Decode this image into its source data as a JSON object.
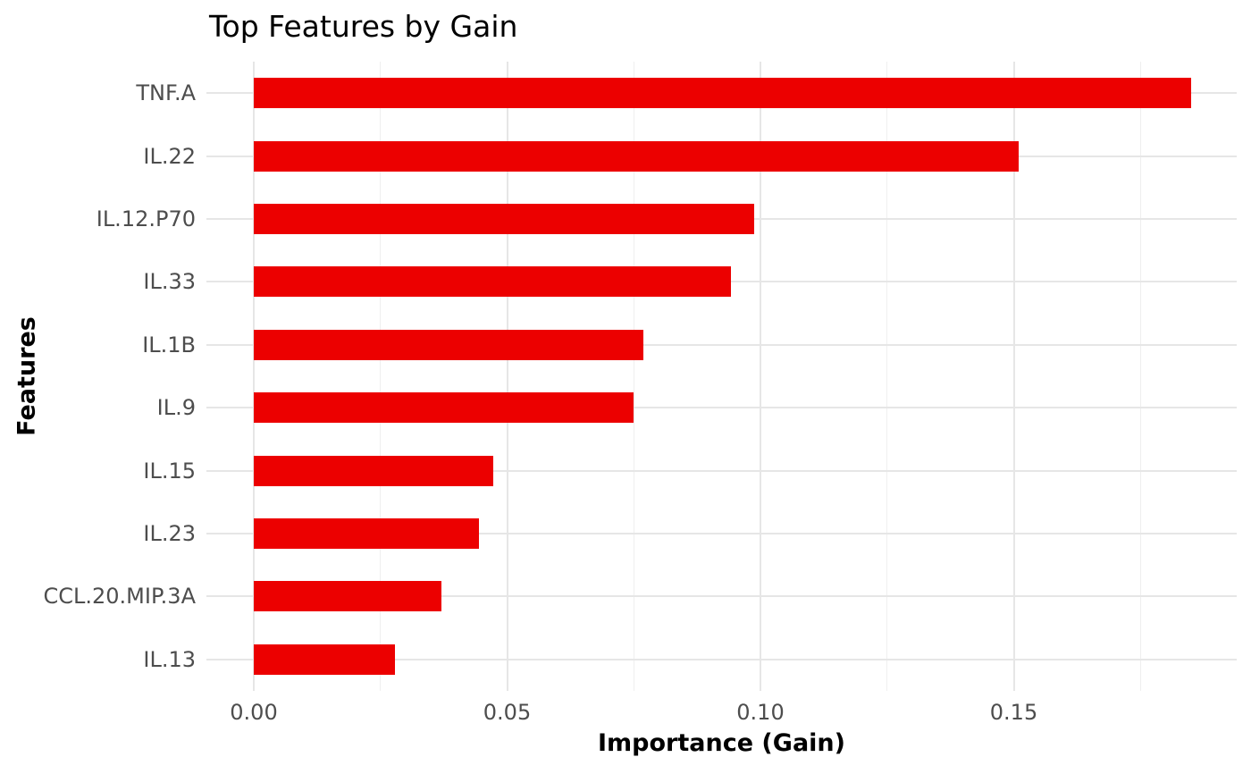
{
  "chart": {
    "title": "Top Features by Gain",
    "x_axis_title": "Importance (Gain)",
    "y_axis_title": "Features"
  },
  "chart_data": {
    "type": "bar",
    "orientation": "horizontal",
    "title": "Top Features by Gain",
    "xlabel": "Importance (Gain)",
    "ylabel": "Features",
    "categories": [
      "TNF.A",
      "IL.22",
      "IL.12.P70",
      "IL.33",
      "IL.1B",
      "IL.9",
      "IL.15",
      "IL.23",
      "CCL.20.MIP.3A",
      "IL.13"
    ],
    "values": [
      0.185,
      0.151,
      0.0988,
      0.0942,
      0.0769,
      0.075,
      0.0473,
      0.0444,
      0.037,
      0.0279
    ],
    "xlim": [
      -0.0094,
      0.1945
    ],
    "x_major_ticks": [
      0,
      0.05,
      0.1,
      0.15
    ],
    "x_tick_labels": [
      "0.00",
      "0.05",
      "0.10",
      "0.15"
    ],
    "x_minor_ticks": [
      0.025,
      0.075,
      0.125,
      0.175
    ],
    "legend": "none",
    "grid": true,
    "colors": {
      "bar": "#EC0000",
      "grid_major": "#E6E6E6",
      "grid_minor": "#EFEFEF",
      "tick_text": "#4D4D4D",
      "title_text": "#000000",
      "background": "#FFFFFF"
    }
  }
}
